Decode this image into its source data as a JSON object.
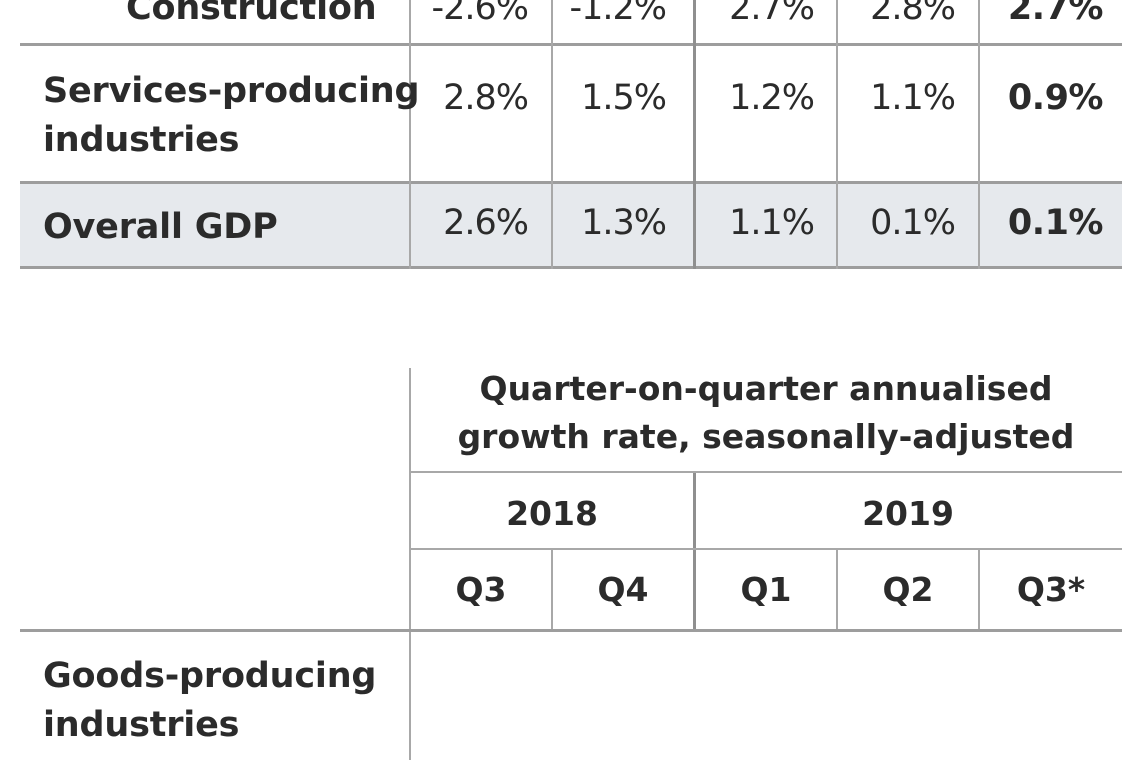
{
  "upper_table": {
    "rows": [
      {
        "label": "Construction",
        "values": [
          "-2.6%",
          "-1.2%",
          "2.7%",
          "2.8%",
          "2.7%"
        ]
      },
      {
        "label_line1": "Services-producing",
        "label_line2": "industries",
        "values": [
          "2.8%",
          "1.5%",
          "1.2%",
          "1.1%",
          "0.9%"
        ]
      },
      {
        "label": "Overall GDP",
        "values": [
          "2.6%",
          "1.3%",
          "1.1%",
          "0.1%",
          "0.1%"
        ]
      }
    ]
  },
  "lower_table": {
    "title_line1": "Quarter-on-quarter annualised",
    "title_line2": "growth rate, seasonally-adjusted",
    "years": [
      "2018",
      "2019"
    ],
    "quarters": [
      "Q3",
      "Q4",
      "Q1",
      "Q2",
      "Q3*"
    ],
    "row": {
      "label_line1": "Goods-producing",
      "label_line2": "industries"
    }
  }
}
